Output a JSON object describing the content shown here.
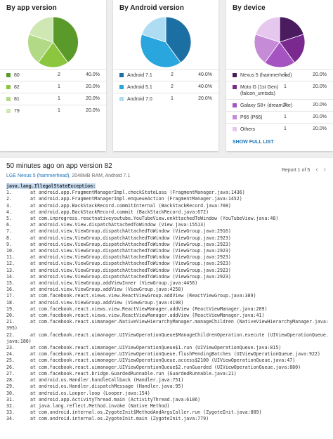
{
  "chart_data": [
    {
      "type": "pie",
      "title": "By app version",
      "categories": [
        "80",
        "82",
        "81",
        "79"
      ],
      "values": [
        2,
        1,
        1,
        1
      ],
      "shares": [
        {
          "value": 40,
          "label": "40.0%"
        },
        {
          "value": 20,
          "label": "20.0%"
        },
        {
          "value": 20,
          "label": "20.0%"
        },
        {
          "value": 20,
          "label": "20.0%"
        }
      ],
      "colors": [
        "#5a9a2a",
        "#8cc63f",
        "#b2da86",
        "#cfe8b3"
      ]
    },
    {
      "type": "pie",
      "title": "By Android version",
      "categories": [
        "Android 7.1",
        "Android 5.1",
        "Android 7.0"
      ],
      "values": [
        2,
        2,
        1
      ],
      "shares": [
        {
          "value": 40,
          "label": "40.0%"
        },
        {
          "value": 40,
          "label": "40.0%"
        },
        {
          "value": 20,
          "label": "20.0%"
        }
      ],
      "colors": [
        "#1c6fa3",
        "#2aa6df",
        "#addcf3"
      ]
    },
    {
      "type": "pie",
      "title": "By device",
      "categories": [
        "Nexus 5 (hammerhead)",
        "Moto G (1st Gen) (falcon_umtsds)",
        "Galaxy S8+ (dream2lte)",
        "P66 (P66)",
        "Others"
      ],
      "values": [
        1,
        1,
        1,
        1,
        1
      ],
      "shares": [
        {
          "value": 20,
          "label": "20.0%"
        },
        {
          "value": 20,
          "label": "20.0%"
        },
        {
          "value": 20,
          "label": "20.0%"
        },
        {
          "value": 20,
          "label": "20.0%"
        },
        {
          "value": 20,
          "label": "20.0%"
        }
      ],
      "colors": [
        "#4a1b5f",
        "#7a2a8f",
        "#a653c2",
        "#c58bd6",
        "#e6c8ee"
      ],
      "link": "SHOW FULL LIST"
    }
  ],
  "report": {
    "title": "50 minutes ago on app version 82",
    "device": "LGE Nexus 5 (hammerhead)",
    "details": ", 2048MB RAM, Android 7.1",
    "position": "Report 1 of 5",
    "exception": "java.lang.IllegalStateException:",
    "lines": [
      [
        "1.",
        "at android.app.FragmentManagerImpl.checkStateLoss (FragmentManager.java:1436)"
      ],
      [
        "2.",
        "at android.app.FragmentManagerImpl.enqueueAction (FragmentManager.java:1452)"
      ],
      [
        "3.",
        "at android.app.BackStackRecord.commitInternal (BackStackRecord.java:708)"
      ],
      [
        "4.",
        "at android.app.BackStackRecord.commit (BackStackRecord.java:672)"
      ],
      [
        "5.",
        "at com.inprogress.reactnativeyoutube.YouTubeView.onAttachedToWindow (YouTubeView.java:48)"
      ],
      [
        "6.",
        "at android.view.View.dispatchAttachedToWindow (View.java:15513)"
      ],
      [
        "7.",
        "at android.view.ViewGroup.dispatchAttachedToWindow (ViewGroup.java:2916)"
      ],
      [
        "8.",
        "at android.view.ViewGroup.dispatchAttachedToWindow (ViewGroup.java:2923)"
      ],
      [
        "9.",
        "at android.view.ViewGroup.dispatchAttachedToWindow (ViewGroup.java:2923)"
      ],
      [
        "10.",
        "at android.view.ViewGroup.dispatchAttachedToWindow (ViewGroup.java:2923)"
      ],
      [
        "11.",
        "at android.view.ViewGroup.dispatchAttachedToWindow (ViewGroup.java:2923)"
      ],
      [
        "12.",
        "at android.view.ViewGroup.dispatchAttachedToWindow (ViewGroup.java:2923)"
      ],
      [
        "13.",
        "at android.view.ViewGroup.dispatchAttachedToWindow (ViewGroup.java:2923)"
      ],
      [
        "14.",
        "at android.view.ViewGroup.dispatchAttachedToWindow (ViewGroup.java:2923)"
      ],
      [
        "15.",
        "at android.view.ViewGroup.addViewInner (ViewGroup.java:4456)"
      ],
      [
        "16.",
        "at android.view.ViewGroup.addView (ViewGroup.java:4258)"
      ],
      [
        "17.",
        "at com.facebook.react.views.view.ReactViewGroup.addView (ReactViewGroup.java:389)"
      ],
      [
        "18.",
        "at android.view.ViewGroup.addView (ViewGroup.java:4198)"
      ],
      [
        "19.",
        "at com.facebook.react.views.view.ReactViewManager.addView (ReactViewManager.java:209)"
      ],
      [
        "20.",
        "at com.facebook.react.views.view.ReactViewManager.addView (ReactViewManager.java:41)"
      ],
      [
        "21.",
        "at com.facebook.react.uimanager.NativeViewHierarchyManager.manageChildren (NativeViewHierarchyManager.java:395)"
      ],
      [
        "22.",
        "at com.facebook.react.uimanager.UIViewOperationQueue$ManageChildrenOperation.execute (UIViewOperationQueue.java:180)"
      ],
      [
        "23.",
        "at com.facebook.react.uimanager.UIViewOperationQueue$1.run (UIViewOperationQueue.java:815)"
      ],
      [
        "24.",
        "at com.facebook.react.uimanager.UIViewOperationQueue.flushPendingBatches (UIViewOperationQueue.java:922)"
      ],
      [
        "25.",
        "at com.facebook.react.uimanager.UIViewOperationQueue.access$2100 (UIViewOperationQueue.java:47)"
      ],
      [
        "26.",
        "at com.facebook.react.uimanager.UIViewOperationQueue$2.runGuarded (UIViewOperationQueue.java:880)"
      ],
      [
        "27.",
        "at com.facebook.react.bridge.GuardedRunnable.run (GuardedRunnable.java:21)"
      ],
      [
        "28.",
        "at android.os.Handler.handleCallback (Handler.java:751)"
      ],
      [
        "29.",
        "at android.os.Handler.dispatchMessage (Handler.java:95)"
      ],
      [
        "30.",
        "at android.os.Looper.loop (Looper.java:154)"
      ],
      [
        "31.",
        "at android.app.ActivityThread.main (ActivityThread.java:6186)"
      ],
      [
        "32.",
        "at java.lang.reflect.Method.invoke (Native Method)"
      ],
      [
        "33.",
        "at com.android.internal.os.ZygoteInit$MethodAndArgsCaller.run (ZygoteInit.java:889)"
      ],
      [
        "34.",
        "at com.android.internal.os.ZygoteInit.main (ZygoteInit.java:779)"
      ]
    ]
  }
}
